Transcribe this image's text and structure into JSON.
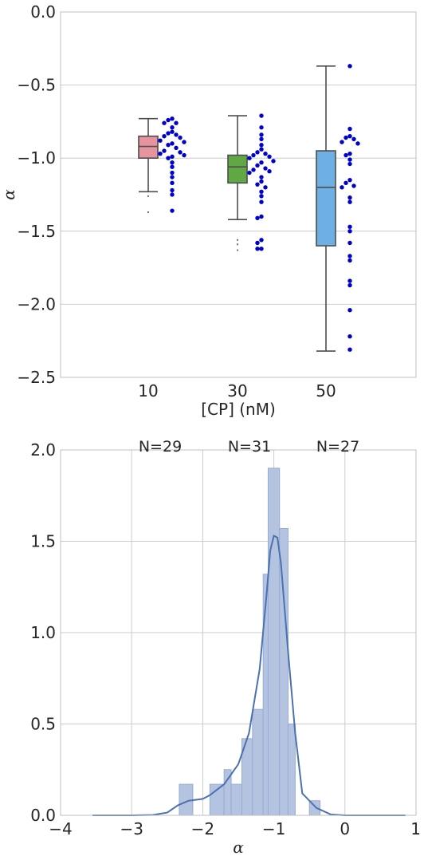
{
  "chart_data": [
    {
      "type": "box",
      "ylabel": "α",
      "xlabel": "[CP] (nM)",
      "ylim": [
        -2.5,
        0.0
      ],
      "yticks": [
        "0.0",
        "−0.5",
        "−1.0",
        "−1.5",
        "−2.0",
        "−2.5"
      ],
      "grid": true,
      "categories": [
        "10",
        "30",
        "50"
      ],
      "boxes": [
        {
          "category": "10",
          "color": "#e8949e",
          "q1": -1.0,
          "median": -0.92,
          "q3": -0.85,
          "whisker_low": -1.23,
          "whisker_high": -0.73,
          "outliers": [
            -1.26,
            -1.37
          ]
        },
        {
          "category": "30",
          "color": "#5fa844",
          "q1": -1.17,
          "median": -1.06,
          "q3": -0.98,
          "whisker_low": -1.42,
          "whisker_high": -0.71,
          "outliers": [
            -1.56,
            -1.59,
            -1.63
          ]
        },
        {
          "category": "50",
          "color": "#6eb0e4",
          "q1": -1.6,
          "median": -1.2,
          "q3": -0.95,
          "whisker_low": -2.32,
          "whisker_high": -0.37,
          "outliers": []
        }
      ],
      "swarm_color": "#0000cc",
      "swarm_points": [
        {
          "category": "10",
          "values": [
            -0.73,
            -0.74,
            -0.76,
            -0.76,
            -0.79,
            -0.82,
            -0.83,
            -0.84,
            -0.85,
            -0.86,
            -0.88,
            -0.89,
            -0.9,
            -0.91,
            -0.93,
            -0.95,
            -0.96,
            -0.97,
            -0.98,
            -0.99,
            -1.0,
            -1.03,
            -1.06,
            -1.1,
            -1.13,
            -1.17,
            -1.22,
            -1.25,
            -1.36
          ]
        },
        {
          "category": "30",
          "values": [
            -0.71,
            -0.79,
            -0.84,
            -0.87,
            -0.91,
            -0.94,
            -0.96,
            -0.97,
            -0.98,
            -0.99,
            -1.0,
            -1.02,
            -1.03,
            -1.05,
            -1.07,
            -1.08,
            -1.09,
            -1.1,
            -1.13,
            -1.16,
            -1.18,
            -1.2,
            -1.23,
            -1.26,
            -1.3,
            -1.4,
            -1.41,
            -1.56,
            -1.58,
            -1.62,
            -1.62
          ]
        },
        {
          "category": "50",
          "values": [
            -0.37,
            -0.8,
            -0.85,
            -0.86,
            -0.87,
            -0.89,
            -0.9,
            -0.97,
            -0.98,
            -1.01,
            -1.04,
            -1.15,
            -1.17,
            -1.19,
            -1.2,
            -1.27,
            -1.3,
            -1.47,
            -1.5,
            -1.58,
            -1.67,
            -1.7,
            -1.84,
            -1.87,
            -2.04,
            -2.22,
            -2.31
          ]
        }
      ]
    },
    {
      "type": "histogram",
      "xlabel": "α",
      "xlim": [
        -4,
        1
      ],
      "ylim": [
        0,
        2.0
      ],
      "xticks": [
        "−4",
        "−3",
        "−2",
        "−1",
        "0",
        "1"
      ],
      "yticks": [
        "0.0",
        "0.5",
        "1.0",
        "1.5",
        "2.0"
      ],
      "grid": true,
      "bar_color": "#b4c3e0",
      "bar_edge_color": "#97abd4",
      "bars": [
        {
          "x0": -2.33,
          "x1": -2.14,
          "height": 0.17
        },
        {
          "x0": -1.9,
          "x1": -1.7,
          "height": 0.17
        },
        {
          "x0": -1.7,
          "x1": -1.6,
          "height": 0.25
        },
        {
          "x0": -1.6,
          "x1": -1.45,
          "height": 0.17
        },
        {
          "x0": -1.45,
          "x1": -1.3,
          "height": 0.42
        },
        {
          "x0": -1.3,
          "x1": -1.15,
          "height": 0.58
        },
        {
          "x0": -1.15,
          "x1": -1.08,
          "height": 1.32
        },
        {
          "x0": -1.08,
          "x1": -0.92,
          "height": 1.9
        },
        {
          "x0": -0.92,
          "x1": -0.8,
          "height": 1.57
        },
        {
          "x0": -0.8,
          "x1": -0.7,
          "height": 0.5
        },
        {
          "x0": -0.5,
          "x1": -0.35,
          "height": 0.08
        }
      ],
      "kde_color": "#4a72b0",
      "kde": [
        {
          "x": -3.55,
          "y": 0.0
        },
        {
          "x": -3.0,
          "y": 0.0
        },
        {
          "x": -2.7,
          "y": 0.002
        },
        {
          "x": -2.5,
          "y": 0.015
        },
        {
          "x": -2.35,
          "y": 0.055
        },
        {
          "x": -2.2,
          "y": 0.08
        },
        {
          "x": -2.0,
          "y": 0.09
        },
        {
          "x": -1.9,
          "y": 0.11
        },
        {
          "x": -1.7,
          "y": 0.17
        },
        {
          "x": -1.5,
          "y": 0.28
        },
        {
          "x": -1.35,
          "y": 0.45
        },
        {
          "x": -1.2,
          "y": 0.8
        },
        {
          "x": -1.1,
          "y": 1.22
        },
        {
          "x": -1.05,
          "y": 1.45
        },
        {
          "x": -1.0,
          "y": 1.53
        },
        {
          "x": -0.95,
          "y": 1.52
        },
        {
          "x": -0.9,
          "y": 1.38
        },
        {
          "x": -0.8,
          "y": 0.9
        },
        {
          "x": -0.7,
          "y": 0.45
        },
        {
          "x": -0.6,
          "y": 0.12
        },
        {
          "x": -0.4,
          "y": 0.04
        },
        {
          "x": -0.2,
          "y": 0.005
        },
        {
          "x": 0.0,
          "y": 0.0
        },
        {
          "x": 0.85,
          "y": 0.0
        }
      ],
      "annotations": [
        "N=29",
        "N=31",
        "N=27"
      ]
    }
  ]
}
